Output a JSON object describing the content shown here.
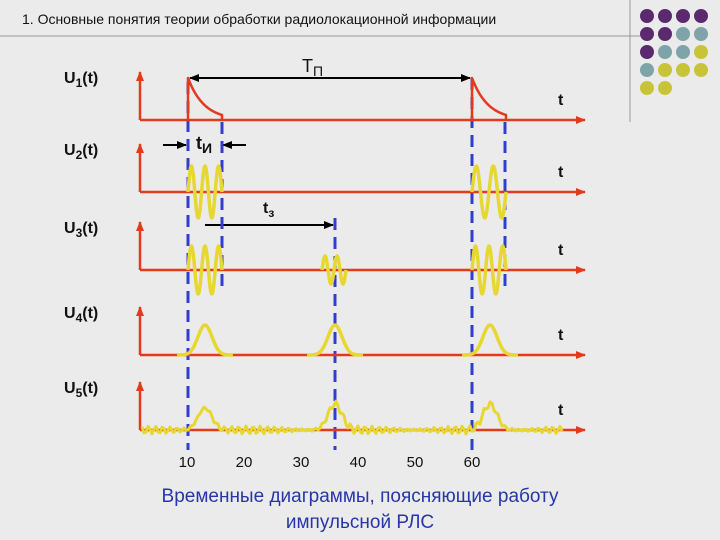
{
  "header": {
    "title": "1. Основные понятия теории обработки радиолокационной информации"
  },
  "signals": [
    {
      "name": "U",
      "index": "1",
      "arg": "(t)",
      "axis": "t"
    },
    {
      "name": "U",
      "index": "2",
      "arg": "(t)",
      "axis": "t"
    },
    {
      "name": "U",
      "index": "3",
      "arg": "(t)",
      "axis": "t"
    },
    {
      "name": "U",
      "index": "4",
      "arg": "(t)",
      "axis": "t"
    },
    {
      "name": "U",
      "index": "5",
      "arg": "(t)",
      "axis": "t"
    }
  ],
  "annotations": {
    "period": {
      "main": "Т",
      "sub": "П"
    },
    "pulse": {
      "main": "t",
      "sub": "И"
    },
    "delay": {
      "main": "t",
      "sub": "з"
    }
  },
  "time_labels": [
    10,
    20,
    30,
    40,
    50,
    60
  ],
  "caption": [
    "Временные диаграммы, поясняющие работу",
    "импульсной РЛС"
  ]
}
